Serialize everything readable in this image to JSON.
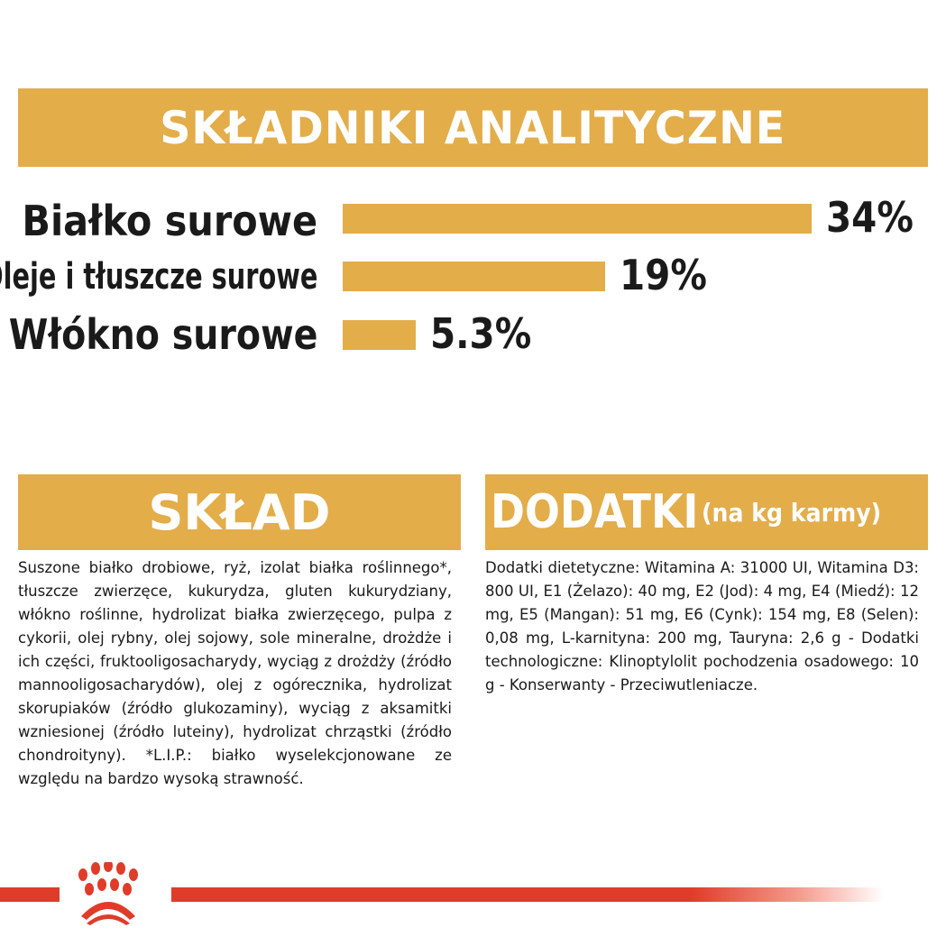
{
  "analytical": {
    "title": "SKŁADNIKI ANALITYCZNE",
    "rows": [
      {
        "label": "Białko surowe",
        "value": 34,
        "value_text": "34%"
      },
      {
        "label": "Oleje i tłuszcze surowe",
        "value": 19,
        "value_text": "19%"
      },
      {
        "label": "Włókno surowe",
        "value": 5.3,
        "value_text": "5.3%"
      }
    ]
  },
  "composition": {
    "title": "SKŁAD",
    "text": "Suszone białko drobiowe, ryż, izolat białka roślinnego*, tłuszcze zwierzęce, kukurydza, gluten kukurydziany, włókno roślinne, hydrolizat białka zwierzęcego, pulpa z cykorii, olej rybny, olej sojowy, sole mineralne, drożdże i ich części, fruktooligosacharydy, wyciąg z drożdży (źródło mannooligosacharydów), olej z ogórecznika, hydrolizat skorupiaków (źródło glukozaminy), wyciąg z aksamitki wzniesionej (źródło luteiny), hydrolizat chrząstki (źródło chondroityny). *L.I.P.: białko wyselekcjonowane ze względu na bardzo wysoką strawność."
  },
  "additives": {
    "title": "DODATKI",
    "subtitle": "(na kg karmy)",
    "text": "Dodatki dietetyczne: Witamina A: 31000 UI, Witamina D3: 800 UI, E1 (Żelazo): 40 mg, E2 (Jod): 4 mg, E4 (Miedź): 12 mg, E5 (Mangan): 51 mg, E6 (Cynk): 154 mg, E8 (Selen): 0,08 mg, L-karnityna: 200 mg, Tauryna: 2,6 g - Dodatki technologiczne: Klinoptylolit pochodzenia osadowego: 10 g - Konserwanty - Przeciwutleniacze."
  },
  "colors": {
    "accent": "#e3ad4a",
    "brand_red": "#e03c2a"
  },
  "footer": {
    "logo": "crown-paw-logo"
  }
}
